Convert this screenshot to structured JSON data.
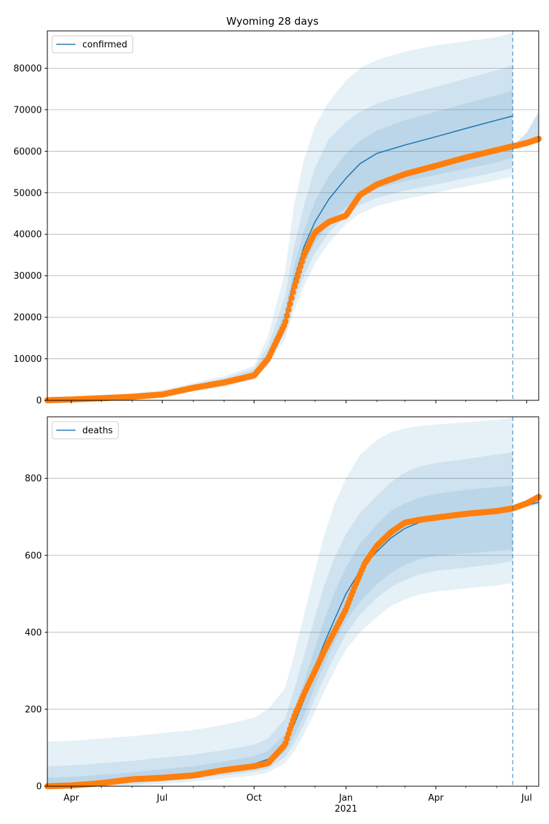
{
  "figure": {
    "title": "Wyoming 28 days"
  },
  "style": {
    "line_color": "#1f77b4",
    "band_color": "#1f77b4",
    "dot_color": "#ff7f0e",
    "grid_color": "#b0b0b0"
  },
  "chart_data": [
    {
      "type": "line",
      "name": "confirmed",
      "legend": "confirmed",
      "legend_loc": "upper left",
      "x_is_dates": true,
      "xlim": [
        "2020-03-08",
        "2021-07-13"
      ],
      "ylim": [
        0,
        89000
      ],
      "grid": "y",
      "yticks": [
        0,
        10000,
        20000,
        30000,
        40000,
        50000,
        60000,
        70000,
        80000
      ],
      "forecast_date": "2021-06-17",
      "observed": {
        "dates": [
          "2020-03-08",
          "2020-04-01",
          "2020-05-01",
          "2020-06-01",
          "2020-07-01",
          "2020-08-01",
          "2020-09-01",
          "2020-10-01",
          "2020-10-15",
          "2020-11-01",
          "2020-11-10",
          "2020-11-20",
          "2020-12-01",
          "2020-12-15",
          "2021-01-01",
          "2021-01-15",
          "2021-02-01",
          "2021-03-01",
          "2021-04-01",
          "2021-05-01",
          "2021-06-01",
          "2021-06-17",
          "2021-07-01",
          "2021-07-13"
        ],
        "values": [
          30,
          200,
          520,
          850,
          1400,
          3000,
          4300,
          6000,
          10000,
          18500,
          27000,
          35000,
          40500,
          43000,
          44500,
          49500,
          52000,
          54500,
          56500,
          58500,
          60300,
          61200,
          62000,
          63000
        ]
      },
      "model": {
        "dates": [
          "2020-03-08",
          "2020-04-01",
          "2020-05-01",
          "2020-06-01",
          "2020-07-01",
          "2020-08-01",
          "2020-09-01",
          "2020-10-01",
          "2020-10-15",
          "2020-11-01",
          "2020-11-10",
          "2020-11-20",
          "2020-12-01",
          "2020-12-15",
          "2021-01-01",
          "2021-01-15",
          "2021-02-01",
          "2021-03-01",
          "2021-04-01",
          "2021-05-01",
          "2021-06-01",
          "2021-06-17"
        ],
        "median": [
          20,
          150,
          450,
          800,
          1500,
          3000,
          4300,
          6300,
          10500,
          19500,
          29000,
          37000,
          43000,
          48500,
          53500,
          57000,
          59500,
          61500,
          63500,
          65500,
          67500,
          68500
        ],
        "band_inner": {
          "lower": [
            0,
            50,
            300,
            600,
            1300,
            2700,
            3900,
            5800,
            9800,
            17500,
            25500,
            32500,
            38000,
            42500,
            46500,
            49000,
            51000,
            52800,
            54300,
            55800,
            57300,
            58500
          ],
          "upper": [
            60,
            280,
            650,
            1100,
            1800,
            3400,
            4800,
            6900,
            11500,
            21500,
            32000,
            41000,
            48000,
            54000,
            59500,
            62500,
            65000,
            67500,
            69500,
            71500,
            73500,
            74700
          ]
        },
        "band_mid": {
          "lower": [
            0,
            0,
            200,
            450,
            1100,
            2400,
            3600,
            5400,
            9200,
            16200,
            23500,
            30000,
            35500,
            40500,
            44500,
            47000,
            48800,
            50500,
            52000,
            53500,
            55000,
            56000
          ],
          "upper": [
            120,
            400,
            850,
            1400,
            2100,
            3800,
            5300,
            7600,
            13000,
            25000,
            37000,
            47000,
            56000,
            63000,
            67000,
            69500,
            71500,
            73500,
            75500,
            77500,
            79500,
            80800
          ]
        },
        "band_outer": {
          "lower": [
            0,
            0,
            100,
            300,
            900,
            2100,
            3200,
            5000,
            8500,
            14800,
            21500,
            27500,
            33000,
            38000,
            42500,
            45000,
            46800,
            48500,
            50000,
            51500,
            53000,
            54000
          ],
          "upper": [
            200,
            550,
            1050,
            1700,
            2500,
            4200,
            5800,
            8300,
            15500,
            31000,
            47000,
            58000,
            66000,
            72000,
            77000,
            80000,
            82000,
            84000,
            85500,
            86500,
            87500,
            88500
          ]
        }
      },
      "extension": {
        "dates": [
          "2021-06-17",
          "2021-07-01",
          "2021-07-13"
        ],
        "median": [
          61200,
          62000,
          63000
        ],
        "lower": [
          61200,
          61500,
          62000
        ],
        "upper": [
          61200,
          64500,
          69500
        ]
      }
    },
    {
      "type": "line",
      "name": "deaths",
      "legend": "deaths",
      "legend_loc": "upper left",
      "x_is_dates": true,
      "xlim": [
        "2020-03-08",
        "2021-07-13"
      ],
      "ylim": [
        0,
        960
      ],
      "grid": "y",
      "yticks": [
        0,
        200,
        400,
        600,
        800
      ],
      "forecast_date": "2021-06-17",
      "xticks": [
        {
          "date": "2020-04-01",
          "label": "Apr"
        },
        {
          "date": "2020-07-01",
          "label": "Jul"
        },
        {
          "date": "2020-10-01",
          "label": "Oct"
        },
        {
          "date": "2021-01-01",
          "label": "Jan",
          "sublabel": "2021"
        },
        {
          "date": "2021-04-01",
          "label": "Apr"
        },
        {
          "date": "2021-07-01",
          "label": "Jul"
        }
      ],
      "observed": {
        "dates": [
          "2020-03-08",
          "2020-04-01",
          "2020-05-01",
          "2020-06-01",
          "2020-07-01",
          "2020-08-01",
          "2020-09-01",
          "2020-10-01",
          "2020-10-15",
          "2020-11-01",
          "2020-11-10",
          "2020-11-20",
          "2020-12-01",
          "2020-12-10",
          "2020-12-20",
          "2021-01-01",
          "2021-01-10",
          "2021-01-20",
          "2021-02-01",
          "2021-02-15",
          "2021-03-01",
          "2021-03-15",
          "2021-04-01",
          "2021-05-01",
          "2021-06-01",
          "2021-06-17",
          "2021-07-01",
          "2021-07-13"
        ],
        "values": [
          0,
          2,
          8,
          18,
          22,
          28,
          42,
          52,
          60,
          108,
          180,
          240,
          300,
          350,
          400,
          460,
          520,
          580,
          625,
          660,
          685,
          692,
          698,
          708,
          715,
          722,
          735,
          752
        ]
      },
      "model": {
        "dates": [
          "2020-03-08",
          "2020-04-01",
          "2020-05-01",
          "2020-06-01",
          "2020-07-01",
          "2020-08-01",
          "2020-09-01",
          "2020-10-01",
          "2020-10-15",
          "2020-11-01",
          "2020-11-10",
          "2020-11-20",
          "2020-12-01",
          "2020-12-10",
          "2020-12-20",
          "2021-01-01",
          "2021-01-15",
          "2021-02-01",
          "2021-02-15",
          "2021-03-01",
          "2021-03-15",
          "2021-04-01",
          "2021-05-01",
          "2021-06-01",
          "2021-06-17"
        ],
        "median": [
          2,
          4,
          10,
          17,
          24,
          33,
          45,
          58,
          70,
          110,
          160,
          225,
          310,
          370,
          430,
          500,
          560,
          610,
          645,
          670,
          685,
          695,
          705,
          715,
          720
        ],
        "band_inner": {
          "lower": [
            0,
            0,
            4,
            10,
            17,
            25,
            36,
            47,
            56,
            90,
            130,
            185,
            260,
            315,
            370,
            430,
            480,
            525,
            555,
            575,
            590,
            598,
            605,
            612,
            615
          ],
          "upper": [
            22,
            24,
            30,
            36,
            44,
            52,
            64,
            78,
            92,
            135,
            195,
            270,
            360,
            430,
            500,
            570,
            630,
            680,
            715,
            735,
            750,
            760,
            770,
            778,
            782
          ]
        },
        "band_mid": {
          "lower": [
            0,
            0,
            0,
            5,
            12,
            19,
            29,
            38,
            46,
            76,
            110,
            160,
            228,
            280,
            335,
            395,
            445,
            490,
            518,
            536,
            550,
            560,
            568,
            578,
            585
          ],
          "upper": [
            52,
            54,
            60,
            66,
            74,
            82,
            94,
            108,
            124,
            175,
            250,
            340,
            440,
            520,
            590,
            655,
            710,
            755,
            790,
            815,
            830,
            840,
            850,
            862,
            868
          ]
        },
        "band_outer": {
          "lower": [
            0,
            0,
            0,
            0,
            6,
            12,
            20,
            28,
            36,
            60,
            90,
            135,
            195,
            245,
            298,
            355,
            400,
            440,
            468,
            486,
            498,
            506,
            514,
            522,
            528
          ],
          "upper": [
            116,
            118,
            124,
            130,
            138,
            146,
            160,
            178,
            200,
            255,
            340,
            445,
            560,
            650,
            730,
            800,
            860,
            900,
            920,
            930,
            936,
            940,
            946,
            952,
            958
          ]
        }
      },
      "extension": {
        "dates": [
          "2021-06-17",
          "2021-07-01",
          "2021-07-13"
        ],
        "median": [
          722,
          730,
          738
        ],
        "lower": [
          722,
          726,
          732
        ],
        "upper": [
          722,
          734,
          742
        ]
      }
    }
  ]
}
